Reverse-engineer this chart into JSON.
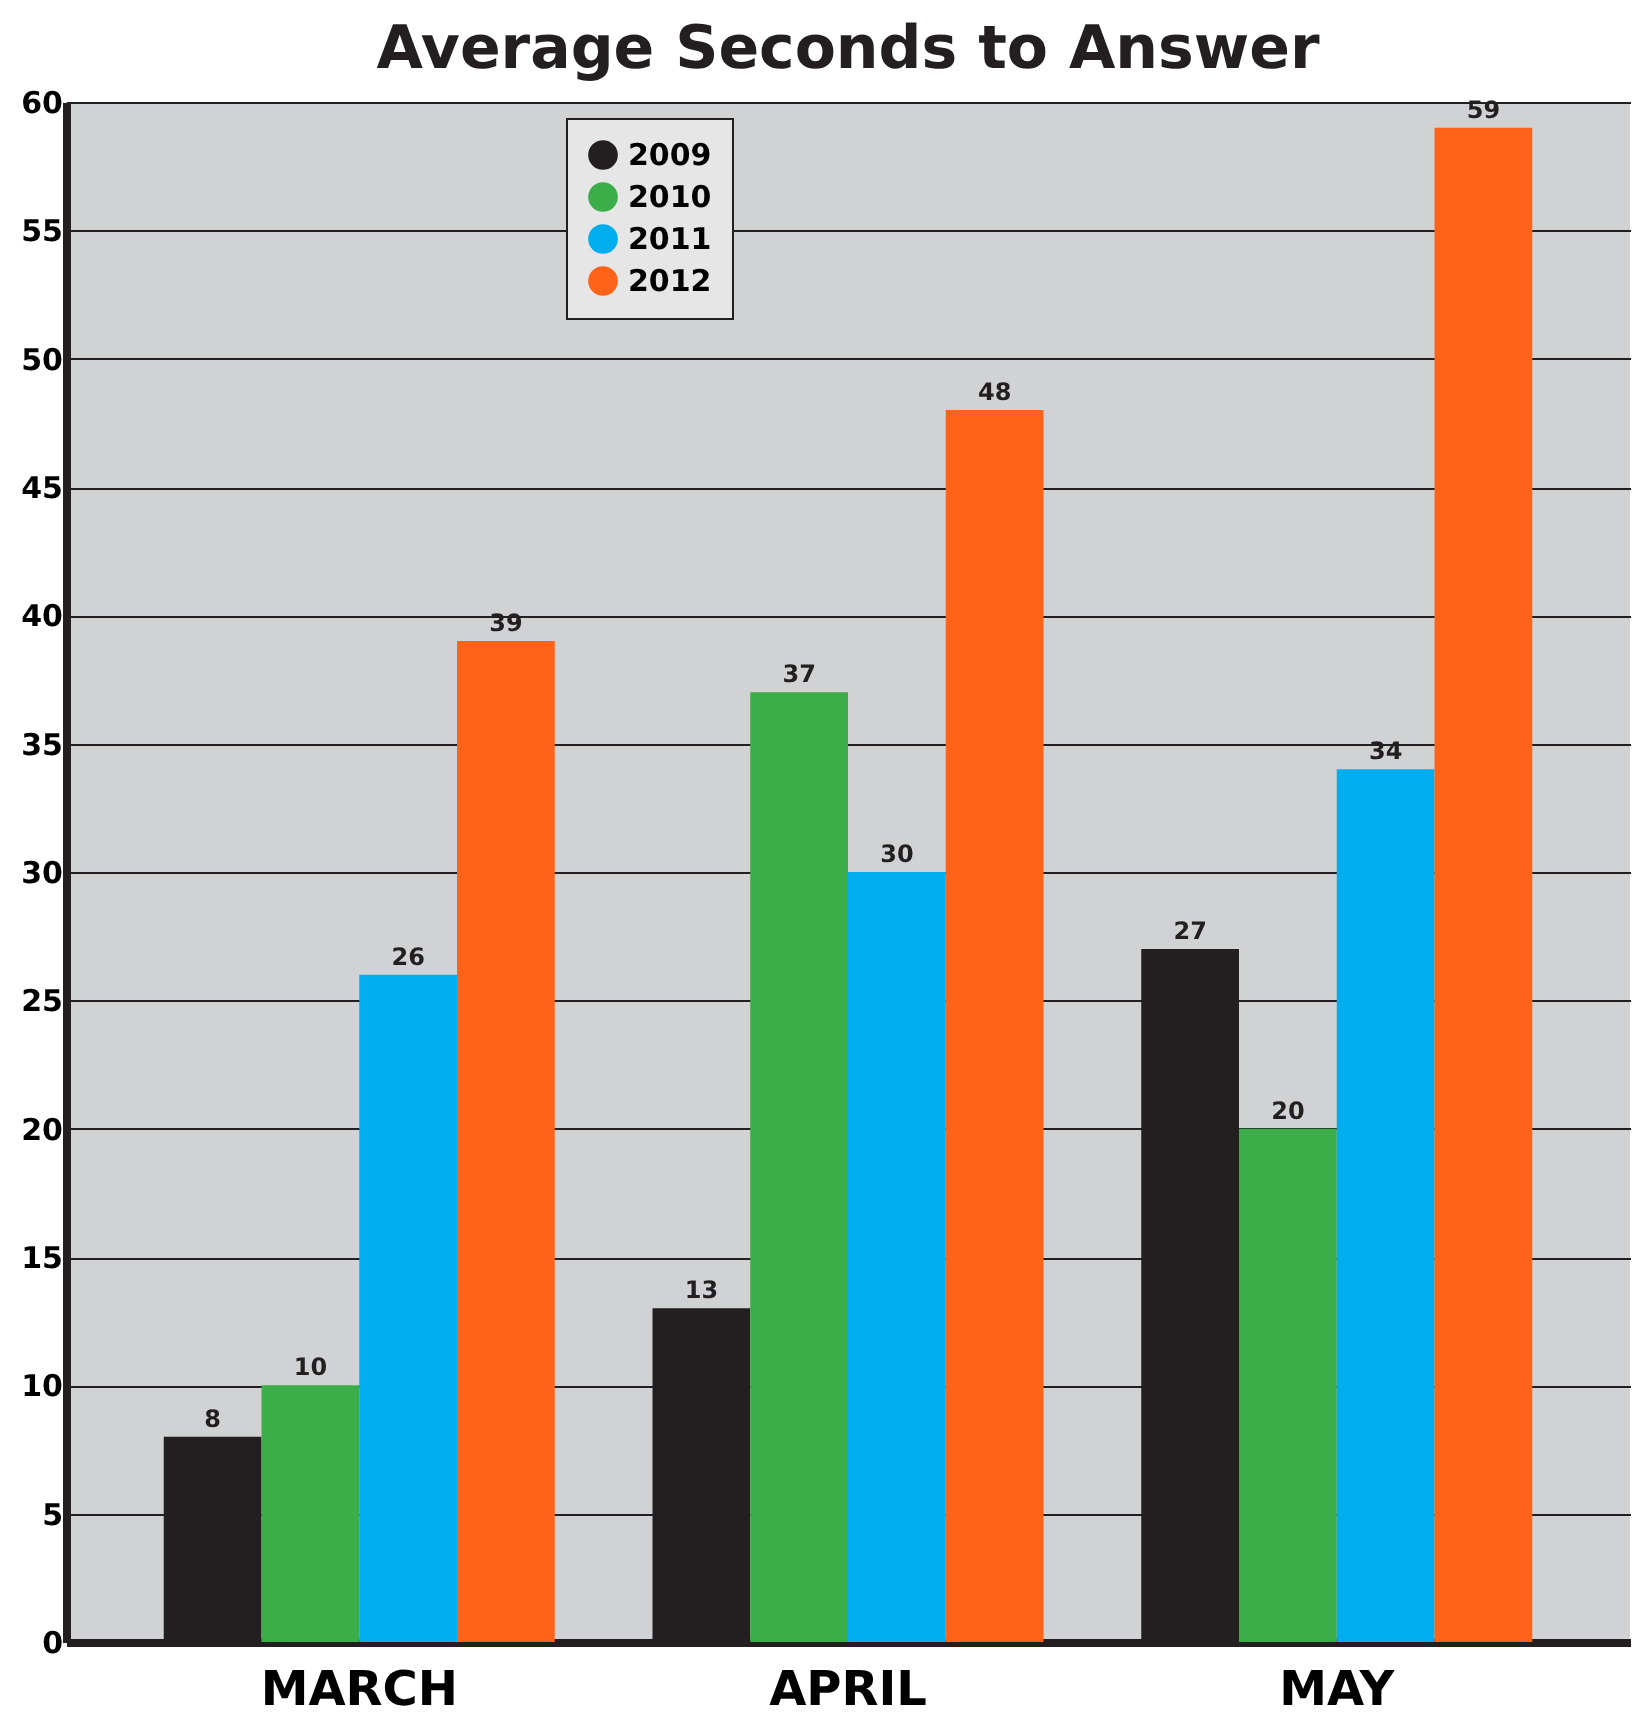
{
  "chart_data": {
    "type": "bar",
    "title": "Average Seconds to Answer",
    "categories": [
      "MARCH",
      "APRIL",
      "MAY"
    ],
    "series": [
      {
        "name": "2009",
        "color": "#231f20",
        "values": [
          8,
          13,
          27
        ]
      },
      {
        "name": "2010",
        "color": "#3cae49",
        "values": [
          10,
          37,
          20
        ]
      },
      {
        "name": "2011",
        "color": "#00aeef",
        "values": [
          26,
          30,
          34
        ]
      },
      {
        "name": "2012",
        "color": "#ff6319",
        "values": [
          39,
          48,
          59
        ]
      }
    ],
    "ylim": [
      0,
      60
    ],
    "yticks": [
      0,
      5,
      10,
      15,
      20,
      25,
      30,
      35,
      40,
      45,
      50,
      55,
      60
    ],
    "grid": "y",
    "legend": "top left",
    "data_labels": true
  }
}
